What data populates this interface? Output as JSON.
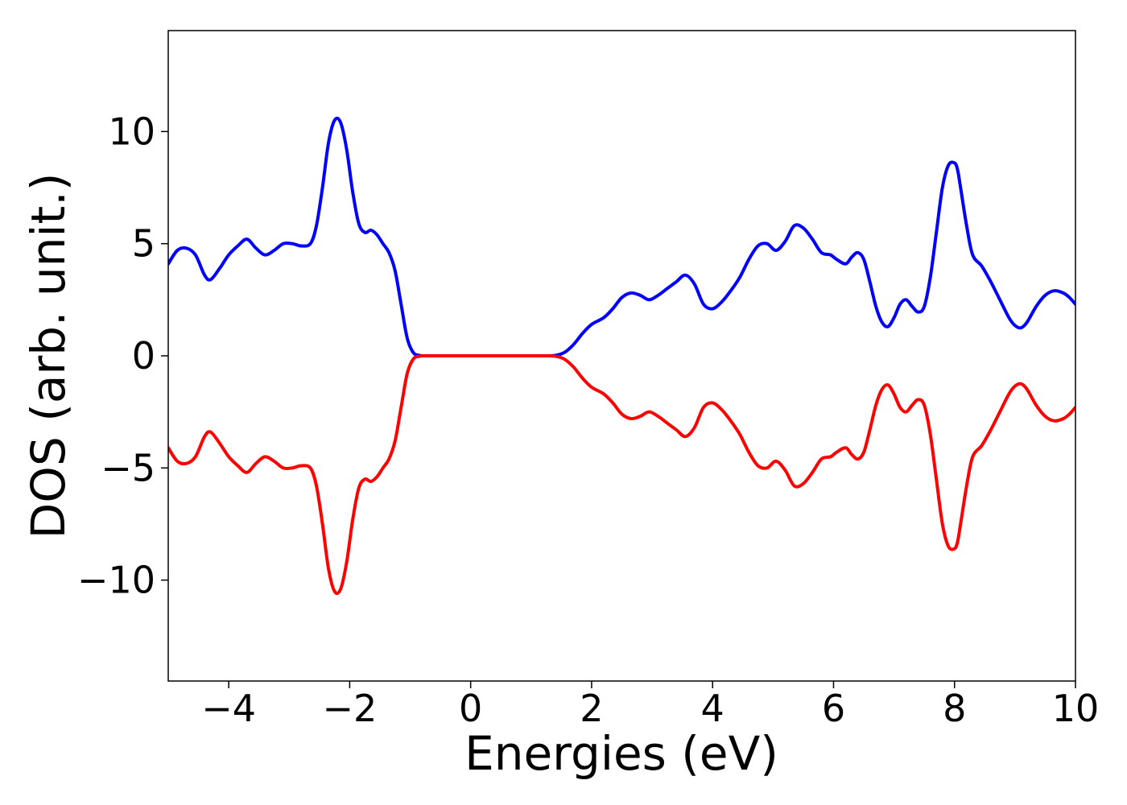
{
  "chart_data": {
    "type": "line",
    "title": "",
    "xlabel": "Energies (eV)",
    "ylabel": "DOS (arb. unit.)",
    "xlim": [
      -5,
      10
    ],
    "ylim": [
      -14.5,
      14.5
    ],
    "grid": false,
    "legend": "none",
    "x_ticks": [
      {
        "value": -4,
        "label": "−4"
      },
      {
        "value": -2,
        "label": "−2"
      },
      {
        "value": 0,
        "label": "0"
      },
      {
        "value": 2,
        "label": "2"
      },
      {
        "value": 4,
        "label": "4"
      },
      {
        "value": 6,
        "label": "6"
      },
      {
        "value": 8,
        "label": "8"
      },
      {
        "value": 10,
        "label": "10"
      }
    ],
    "y_ticks": [
      {
        "value": -10,
        "label": "−10"
      },
      {
        "value": -5,
        "label": "−5"
      },
      {
        "value": 0,
        "label": "0"
      },
      {
        "value": 5,
        "label": "5"
      },
      {
        "value": 10,
        "label": "10"
      }
    ],
    "series": [
      {
        "color": "#0000ff",
        "x": [
          -5.0,
          -4.85,
          -4.7,
          -4.55,
          -4.4,
          -4.3,
          -4.15,
          -4.0,
          -3.85,
          -3.7,
          -3.55,
          -3.4,
          -3.25,
          -3.1,
          -2.95,
          -2.8,
          -2.65,
          -2.55,
          -2.45,
          -2.35,
          -2.25,
          -2.15,
          -2.05,
          -1.95,
          -1.85,
          -1.75,
          -1.65,
          -1.55,
          -1.45,
          -1.35,
          -1.25,
          -1.15,
          -1.05,
          -0.95,
          -0.85,
          -0.75,
          -0.65,
          -0.55,
          -0.4,
          -0.2,
          0.0,
          0.3,
          0.6,
          0.9,
          1.2,
          1.4,
          1.55,
          1.7,
          1.85,
          2.0,
          2.2,
          2.35,
          2.5,
          2.65,
          2.8,
          2.95,
          3.1,
          3.25,
          3.4,
          3.55,
          3.7,
          3.85,
          4.0,
          4.15,
          4.3,
          4.45,
          4.6,
          4.75,
          4.9,
          5.05,
          5.2,
          5.35,
          5.5,
          5.65,
          5.8,
          5.95,
          6.05,
          6.2,
          6.3,
          6.4,
          6.5,
          6.6,
          6.7,
          6.8,
          6.9,
          7.0,
          7.1,
          7.2,
          7.3,
          7.4,
          7.5,
          7.6,
          7.7,
          7.8,
          7.9,
          8.0,
          8.05,
          8.1,
          8.2,
          8.3,
          8.45,
          8.6,
          8.75,
          8.9,
          9.0,
          9.1,
          9.2,
          9.35,
          9.5,
          9.65,
          9.8,
          9.9,
          10.0
        ],
        "y": [
          4.1,
          4.7,
          4.8,
          4.5,
          3.6,
          3.4,
          3.9,
          4.5,
          4.9,
          5.2,
          4.8,
          4.5,
          4.7,
          5.0,
          5.0,
          4.9,
          5.0,
          5.8,
          7.5,
          9.5,
          10.5,
          10.4,
          9.2,
          7.3,
          5.9,
          5.5,
          5.6,
          5.4,
          5.0,
          4.6,
          3.8,
          2.3,
          0.8,
          0.15,
          0.02,
          0.0,
          0.0,
          0.0,
          0.0,
          0.0,
          0.0,
          0.0,
          0.0,
          0.0,
          0.0,
          0.02,
          0.15,
          0.5,
          1.0,
          1.4,
          1.7,
          2.1,
          2.6,
          2.8,
          2.7,
          2.5,
          2.7,
          3.0,
          3.3,
          3.6,
          3.2,
          2.3,
          2.1,
          2.4,
          2.9,
          3.5,
          4.3,
          4.9,
          5.0,
          4.7,
          5.1,
          5.8,
          5.7,
          5.2,
          4.6,
          4.5,
          4.3,
          4.1,
          4.4,
          4.6,
          4.3,
          3.3,
          2.2,
          1.5,
          1.3,
          1.7,
          2.3,
          2.5,
          2.2,
          1.95,
          2.2,
          3.5,
          5.5,
          7.5,
          8.5,
          8.6,
          8.3,
          7.5,
          5.8,
          4.5,
          4.0,
          3.3,
          2.5,
          1.7,
          1.35,
          1.25,
          1.5,
          2.2,
          2.7,
          2.9,
          2.8,
          2.6,
          2.3
        ]
      },
      {
        "color": "#ff0000",
        "x": [
          -5.0,
          -4.85,
          -4.7,
          -4.55,
          -4.4,
          -4.3,
          -4.15,
          -4.0,
          -3.85,
          -3.7,
          -3.55,
          -3.4,
          -3.25,
          -3.1,
          -2.95,
          -2.8,
          -2.65,
          -2.55,
          -2.45,
          -2.35,
          -2.25,
          -2.15,
          -2.05,
          -1.95,
          -1.85,
          -1.75,
          -1.65,
          -1.55,
          -1.45,
          -1.35,
          -1.25,
          -1.15,
          -1.05,
          -0.95,
          -0.85,
          -0.75,
          -0.65,
          -0.55,
          -0.4,
          -0.2,
          0.0,
          0.3,
          0.6,
          0.9,
          1.2,
          1.4,
          1.55,
          1.7,
          1.85,
          2.0,
          2.2,
          2.35,
          2.5,
          2.65,
          2.8,
          2.95,
          3.1,
          3.25,
          3.4,
          3.55,
          3.7,
          3.85,
          4.0,
          4.15,
          4.3,
          4.45,
          4.6,
          4.75,
          4.9,
          5.05,
          5.2,
          5.35,
          5.5,
          5.65,
          5.8,
          5.95,
          6.05,
          6.2,
          6.3,
          6.4,
          6.5,
          6.6,
          6.7,
          6.8,
          6.9,
          7.0,
          7.1,
          7.2,
          7.3,
          7.4,
          7.5,
          7.6,
          7.7,
          7.8,
          7.9,
          8.0,
          8.05,
          8.1,
          8.2,
          8.3,
          8.45,
          8.6,
          8.75,
          8.9,
          9.0,
          9.1,
          9.2,
          9.35,
          9.5,
          9.65,
          9.8,
          9.9,
          10.0
        ],
        "y": [
          -4.1,
          -4.7,
          -4.8,
          -4.5,
          -3.6,
          -3.4,
          -3.9,
          -4.5,
          -4.9,
          -5.2,
          -4.8,
          -4.5,
          -4.7,
          -5.0,
          -5.0,
          -4.9,
          -5.0,
          -5.8,
          -7.5,
          -9.5,
          -10.5,
          -10.4,
          -9.2,
          -7.3,
          -5.9,
          -5.5,
          -5.6,
          -5.4,
          -5.0,
          -4.6,
          -3.8,
          -2.3,
          -0.8,
          -0.15,
          -0.02,
          0.0,
          0.0,
          0.0,
          0.0,
          0.0,
          0.0,
          0.0,
          0.0,
          0.0,
          0.0,
          -0.02,
          -0.15,
          -0.5,
          -1.0,
          -1.4,
          -1.7,
          -2.1,
          -2.6,
          -2.8,
          -2.7,
          -2.5,
          -2.7,
          -3.0,
          -3.3,
          -3.6,
          -3.2,
          -2.3,
          -2.1,
          -2.4,
          -2.9,
          -3.5,
          -4.3,
          -4.9,
          -5.0,
          -4.7,
          -5.1,
          -5.8,
          -5.7,
          -5.2,
          -4.6,
          -4.5,
          -4.3,
          -4.1,
          -4.4,
          -4.6,
          -4.3,
          -3.3,
          -2.2,
          -1.5,
          -1.3,
          -1.7,
          -2.3,
          -2.5,
          -2.2,
          -1.95,
          -2.2,
          -3.5,
          -5.5,
          -7.5,
          -8.5,
          -8.6,
          -8.3,
          -7.5,
          -5.8,
          -4.5,
          -4.0,
          -3.3,
          -2.5,
          -1.7,
          -1.35,
          -1.25,
          -1.5,
          -2.2,
          -2.7,
          -2.9,
          -2.8,
          -2.6,
          -2.3
        ]
      }
    ]
  }
}
